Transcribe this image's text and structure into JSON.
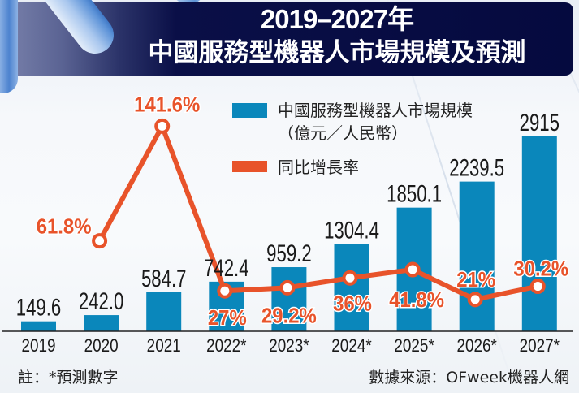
{
  "colors": {
    "bar": "#0a87bb",
    "line": "#e8532a",
    "header_bg": "#050a3f",
    "text": "#1a1a1a"
  },
  "footer": {
    "note": "註：*預測數字",
    "source": "數據來源：OFweek機器人網"
  },
  "chart_data": {
    "type": "bar",
    "title": [
      "2019–2027年",
      "中國服務型機器人市場規模及預測"
    ],
    "xlabel": "",
    "ylabel": "",
    "ylim": [
      0,
      2915
    ],
    "y2lim": [
      0,
      141.6
    ],
    "grid": false,
    "legend_position": "top-right",
    "categories": [
      "2019",
      "2020",
      "2021",
      "2022*",
      "2023*",
      "2024*",
      "2025*",
      "2026*",
      "2027*"
    ],
    "series": [
      {
        "name": "中國服務型機器人市場規模",
        "unit": "（億元／人民幣）",
        "type": "bar",
        "values": [
          149.6,
          242.0,
          584.7,
          742.4,
          959.2,
          1304.4,
          1850.1,
          2239.5,
          2915
        ],
        "labels": [
          "149.6",
          "242.0",
          "584.7",
          "742.4",
          "959.2",
          "1304.4",
          "1850.1",
          "2239.5",
          "2915"
        ]
      },
      {
        "name": "同比增長率",
        "type": "line",
        "values": [
          null,
          61.8,
          141.6,
          27,
          29.2,
          36,
          41.8,
          21,
          30.2
        ],
        "labels": [
          "",
          "61.8%",
          "141.6%",
          "27%",
          "29.2%",
          "36%",
          "41.8%",
          "21%",
          "30.2%"
        ]
      }
    ]
  }
}
